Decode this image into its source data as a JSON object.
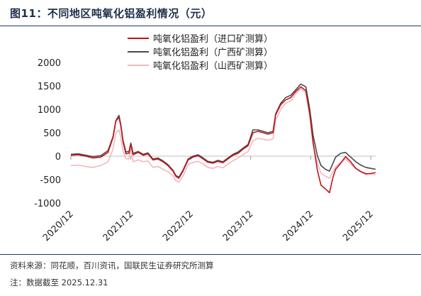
{
  "title": "图11：不同地区吨氧化铝盈利情况（元）",
  "source_note": "资料来源：同花顺，百川资讯，国联民生证券研究所测算",
  "date_note": "注：数据截至 2025.12.31",
  "chart_data": {
    "type": "line",
    "ylim": [
      -1000,
      2000
    ],
    "yticks": [
      -1000,
      -500,
      0,
      500,
      1000,
      1500,
      2000
    ],
    "ytick_labels": [
      "-1000",
      "-500",
      "0",
      "500",
      "1000",
      "1500",
      "2000"
    ],
    "xlim": [
      "2020-12-01",
      "2025-12-31"
    ],
    "xticks": [
      "2020-12-01",
      "2021-12-01",
      "2022-12-01",
      "2023-12-01",
      "2024-12-01",
      "2025-12-01"
    ],
    "xtick_labels": [
      "2020/12",
      "2021/12",
      "2022/12",
      "2023/12",
      "2024/12",
      "2025/12"
    ],
    "legend_position": "top-center",
    "series": [
      {
        "name": "吨氧化铝盈利（进口矿测算）",
        "color": "#c0141c",
        "points": [
          [
            "2020-12-01",
            20
          ],
          [
            "2021-01-15",
            30
          ],
          [
            "2021-03-01",
            0
          ],
          [
            "2021-04-15",
            -40
          ],
          [
            "2021-06-01",
            -20
          ],
          [
            "2021-07-15",
            80
          ],
          [
            "2021-08-15",
            400
          ],
          [
            "2021-09-01",
            750
          ],
          [
            "2021-09-20",
            830
          ],
          [
            "2021-10-01",
            650
          ],
          [
            "2021-10-15",
            300
          ],
          [
            "2021-11-01",
            50
          ],
          [
            "2021-11-20",
            60
          ],
          [
            "2021-12-01",
            250
          ],
          [
            "2021-12-15",
            30
          ],
          [
            "2022-01-15",
            80
          ],
          [
            "2022-02-15",
            20
          ],
          [
            "2022-03-15",
            50
          ],
          [
            "2022-04-15",
            -80
          ],
          [
            "2022-05-15",
            -60
          ],
          [
            "2022-06-15",
            -120
          ],
          [
            "2022-07-15",
            -200
          ],
          [
            "2022-08-15",
            -320
          ],
          [
            "2022-09-01",
            -430
          ],
          [
            "2022-09-20",
            -470
          ],
          [
            "2022-10-15",
            -320
          ],
          [
            "2022-11-15",
            -80
          ],
          [
            "2022-12-15",
            -20
          ],
          [
            "2023-01-15",
            10
          ],
          [
            "2023-02-15",
            -60
          ],
          [
            "2023-03-15",
            -130
          ],
          [
            "2023-04-15",
            -150
          ],
          [
            "2023-05-15",
            -110
          ],
          [
            "2023-06-15",
            -140
          ],
          [
            "2023-07-15",
            -60
          ],
          [
            "2023-08-15",
            20
          ],
          [
            "2023-09-15",
            60
          ],
          [
            "2023-10-15",
            150
          ],
          [
            "2023-11-15",
            220
          ],
          [
            "2023-12-15",
            500
          ],
          [
            "2024-01-15",
            530
          ],
          [
            "2024-02-15",
            500
          ],
          [
            "2024-03-15",
            470
          ],
          [
            "2024-04-15",
            500
          ],
          [
            "2024-05-01",
            880
          ],
          [
            "2024-06-01",
            1100
          ],
          [
            "2024-07-01",
            1200
          ],
          [
            "2024-08-01",
            1250
          ],
          [
            "2024-09-01",
            1380
          ],
          [
            "2024-10-01",
            1480
          ],
          [
            "2024-11-01",
            1400
          ],
          [
            "2024-11-25",
            900
          ],
          [
            "2024-12-15",
            300
          ],
          [
            "2025-01-10",
            -300
          ],
          [
            "2025-02-01",
            -620
          ],
          [
            "2025-03-01",
            -700
          ],
          [
            "2025-03-25",
            -780
          ],
          [
            "2025-04-15",
            -450
          ],
          [
            "2025-05-01",
            -280
          ],
          [
            "2025-06-01",
            -150
          ],
          [
            "2025-07-01",
            -10
          ],
          [
            "2025-08-01",
            -120
          ],
          [
            "2025-09-01",
            -260
          ],
          [
            "2025-10-01",
            -330
          ],
          [
            "2025-11-01",
            -380
          ],
          [
            "2025-12-01",
            -370
          ],
          [
            "2025-12-31",
            -350
          ]
        ]
      },
      {
        "name": "吨氧化铝盈利（广西矿测算）",
        "color": "#4a4a4a",
        "points": [
          [
            "2020-12-01",
            40
          ],
          [
            "2021-01-15",
            50
          ],
          [
            "2021-03-01",
            20
          ],
          [
            "2021-04-15",
            -10
          ],
          [
            "2021-06-01",
            10
          ],
          [
            "2021-07-15",
            120
          ],
          [
            "2021-08-15",
            420
          ],
          [
            "2021-09-01",
            760
          ],
          [
            "2021-09-20",
            870
          ],
          [
            "2021-10-01",
            680
          ],
          [
            "2021-10-15",
            330
          ],
          [
            "2021-11-01",
            90
          ],
          [
            "2021-11-20",
            100
          ],
          [
            "2021-12-01",
            280
          ],
          [
            "2021-12-15",
            60
          ],
          [
            "2022-01-15",
            100
          ],
          [
            "2022-02-15",
            40
          ],
          [
            "2022-03-15",
            70
          ],
          [
            "2022-04-15",
            -60
          ],
          [
            "2022-05-15",
            -40
          ],
          [
            "2022-06-15",
            -100
          ],
          [
            "2022-07-15",
            -180
          ],
          [
            "2022-08-15",
            -300
          ],
          [
            "2022-09-01",
            -410
          ],
          [
            "2022-09-20",
            -450
          ],
          [
            "2022-10-15",
            -300
          ],
          [
            "2022-11-15",
            -60
          ],
          [
            "2022-12-15",
            0
          ],
          [
            "2023-01-15",
            30
          ],
          [
            "2023-02-15",
            -40
          ],
          [
            "2023-03-15",
            -110
          ],
          [
            "2023-04-15",
            -130
          ],
          [
            "2023-05-15",
            -90
          ],
          [
            "2023-06-15",
            -120
          ],
          [
            "2023-07-15",
            -40
          ],
          [
            "2023-08-15",
            40
          ],
          [
            "2023-09-15",
            90
          ],
          [
            "2023-10-15",
            170
          ],
          [
            "2023-11-15",
            250
          ],
          [
            "2023-12-15",
            560
          ],
          [
            "2024-01-15",
            560
          ],
          [
            "2024-02-15",
            530
          ],
          [
            "2024-03-15",
            500
          ],
          [
            "2024-04-15",
            530
          ],
          [
            "2024-05-01",
            900
          ],
          [
            "2024-06-01",
            1130
          ],
          [
            "2024-07-01",
            1250
          ],
          [
            "2024-08-01",
            1300
          ],
          [
            "2024-09-01",
            1420
          ],
          [
            "2024-10-01",
            1540
          ],
          [
            "2024-11-01",
            1480
          ],
          [
            "2024-11-25",
            1000
          ],
          [
            "2024-12-15",
            450
          ],
          [
            "2025-01-10",
            10
          ],
          [
            "2025-02-01",
            -200
          ],
          [
            "2025-03-01",
            -280
          ],
          [
            "2025-03-25",
            -320
          ],
          [
            "2025-04-15",
            -150
          ],
          [
            "2025-05-01",
            -20
          ],
          [
            "2025-06-01",
            60
          ],
          [
            "2025-07-01",
            80
          ],
          [
            "2025-08-01",
            -20
          ],
          [
            "2025-09-01",
            -120
          ],
          [
            "2025-10-01",
            -190
          ],
          [
            "2025-11-01",
            -240
          ],
          [
            "2025-12-01",
            -260
          ],
          [
            "2025-12-31",
            -280
          ]
        ]
      },
      {
        "name": "吨氧化铝盈利（山西矿测算）",
        "color": "#f2b8bc",
        "points": [
          [
            "2020-12-01",
            -200
          ],
          [
            "2021-01-15",
            -190
          ],
          [
            "2021-03-01",
            -220
          ],
          [
            "2021-04-15",
            -240
          ],
          [
            "2021-06-01",
            -200
          ],
          [
            "2021-07-15",
            -120
          ],
          [
            "2021-08-15",
            150
          ],
          [
            "2021-09-01",
            500
          ],
          [
            "2021-09-20",
            560
          ],
          [
            "2021-10-01",
            400
          ],
          [
            "2021-10-15",
            100
          ],
          [
            "2021-11-01",
            -50
          ],
          [
            "2021-11-20",
            -60
          ],
          [
            "2021-12-01",
            150
          ],
          [
            "2021-12-15",
            -120
          ],
          [
            "2022-01-15",
            -80
          ],
          [
            "2022-02-15",
            -120
          ],
          [
            "2022-03-15",
            -100
          ],
          [
            "2022-04-15",
            -240
          ],
          [
            "2022-05-15",
            -220
          ],
          [
            "2022-06-15",
            -280
          ],
          [
            "2022-07-15",
            -330
          ],
          [
            "2022-08-15",
            -420
          ],
          [
            "2022-09-01",
            -520
          ],
          [
            "2022-09-20",
            -560
          ],
          [
            "2022-10-15",
            -420
          ],
          [
            "2022-11-15",
            -180
          ],
          [
            "2022-12-15",
            -130
          ],
          [
            "2023-01-15",
            -110
          ],
          [
            "2023-02-15",
            -170
          ],
          [
            "2023-03-15",
            -240
          ],
          [
            "2023-04-15",
            -260
          ],
          [
            "2023-05-15",
            -220
          ],
          [
            "2023-06-15",
            -250
          ],
          [
            "2023-07-15",
            -170
          ],
          [
            "2023-08-15",
            -100
          ],
          [
            "2023-09-15",
            -40
          ],
          [
            "2023-10-15",
            30
          ],
          [
            "2023-11-15",
            100
          ],
          [
            "2023-12-15",
            330
          ],
          [
            "2024-01-15",
            380
          ],
          [
            "2024-02-15",
            360
          ],
          [
            "2024-03-15",
            340
          ],
          [
            "2024-04-15",
            370
          ],
          [
            "2024-05-01",
            760
          ],
          [
            "2024-06-01",
            1000
          ],
          [
            "2024-07-01",
            1130
          ],
          [
            "2024-08-01",
            1180
          ],
          [
            "2024-09-01",
            1330
          ],
          [
            "2024-10-01",
            1440
          ],
          [
            "2024-11-01",
            1360
          ],
          [
            "2024-11-25",
            850
          ],
          [
            "2024-12-15",
            250
          ],
          [
            "2025-01-10",
            -150
          ],
          [
            "2025-02-01",
            -360
          ],
          [
            "2025-03-01",
            -430
          ],
          [
            "2025-03-25",
            -470
          ],
          [
            "2025-04-15",
            -330
          ],
          [
            "2025-05-01",
            -230
          ],
          [
            "2025-06-01",
            -130
          ],
          [
            "2025-07-01",
            -60
          ],
          [
            "2025-08-01",
            -170
          ],
          [
            "2025-09-01",
            -260
          ],
          [
            "2025-10-01",
            -320
          ],
          [
            "2025-11-01",
            -360
          ],
          [
            "2025-12-01",
            -380
          ],
          [
            "2025-12-31",
            -400
          ]
        ]
      }
    ]
  }
}
